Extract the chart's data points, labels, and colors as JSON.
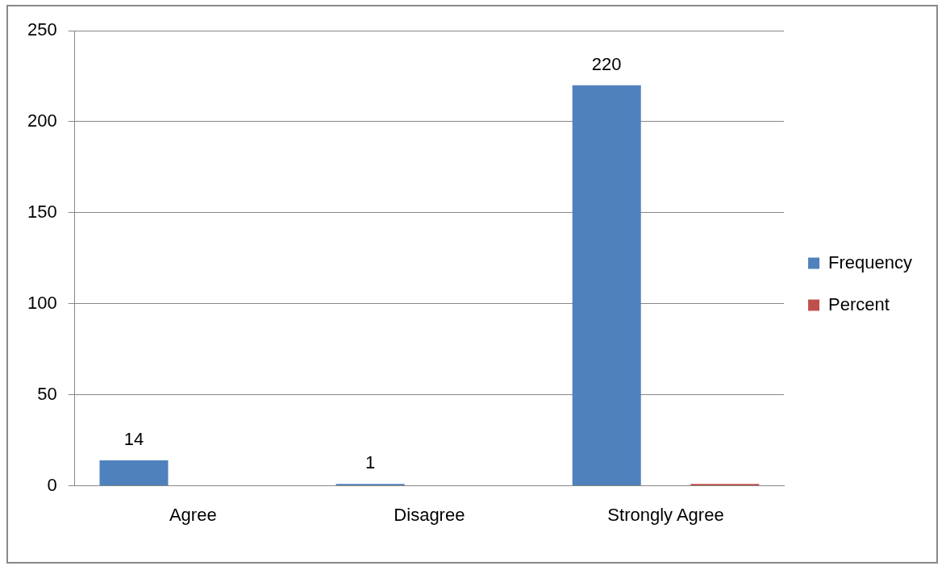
{
  "chart_data": {
    "type": "bar",
    "categories": [
      "Agree",
      "Disagree",
      "Strongly Agree"
    ],
    "series": [
      {
        "name": "Frequency",
        "color": "#4f81bd",
        "values": [
          14,
          1,
          220
        ],
        "value_labels": [
          "14",
          "1",
          "220"
        ]
      },
      {
        "name": "Percent",
        "color": "#c0504d",
        "values": [
          0,
          0,
          1
        ]
      }
    ],
    "ylim": [
      0,
      250
    ],
    "yticks": [
      0,
      50,
      100,
      150,
      200,
      250
    ],
    "grid": "y",
    "legend": "right"
  }
}
